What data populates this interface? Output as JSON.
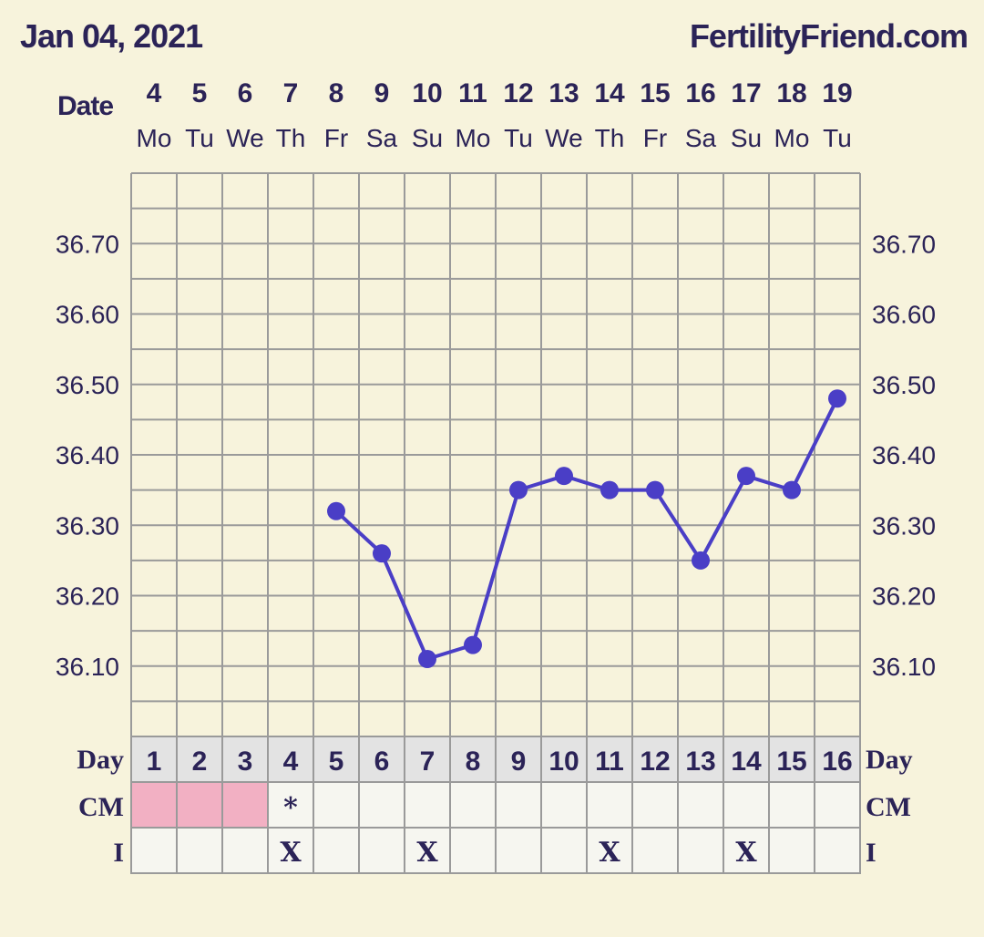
{
  "header": {
    "date": "Jan 04, 2021",
    "site": "FertilityFriend.com"
  },
  "colors": {
    "background": "#f7f3dc",
    "line": "#4a3ec6",
    "text": "#2b2357",
    "grid": "#9a9a9a",
    "menses": "#f2b0c3",
    "day_row": "#e3e3e3",
    "cell": "#f6f6f0"
  },
  "chart_data": {
    "type": "line",
    "title": "",
    "xlabel": "Date",
    "ylabel": "",
    "dates": [
      "4",
      "5",
      "6",
      "7",
      "8",
      "9",
      "10",
      "11",
      "12",
      "13",
      "14",
      "15",
      "16",
      "17",
      "18",
      "19"
    ],
    "weekdays": [
      "Mo",
      "Tu",
      "We",
      "Th",
      "Fr",
      "Sa",
      "Su",
      "Mo",
      "Tu",
      "We",
      "Th",
      "Fr",
      "Sa",
      "Su",
      "Mo",
      "Tu"
    ],
    "days": [
      "1",
      "2",
      "3",
      "4",
      "5",
      "6",
      "7",
      "8",
      "9",
      "10",
      "11",
      "12",
      "13",
      "14",
      "15",
      "16"
    ],
    "temperatures": [
      null,
      null,
      null,
      null,
      36.32,
      36.26,
      36.11,
      36.13,
      36.35,
      36.37,
      36.35,
      36.35,
      36.25,
      36.37,
      36.35,
      36.48
    ],
    "ylim": [
      36.0,
      36.8
    ],
    "yticks": [
      "36.70",
      "36.60",
      "36.50",
      "36.40",
      "36.30",
      "36.20",
      "36.10"
    ],
    "ytick_values": [
      36.7,
      36.6,
      36.5,
      36.4,
      36.3,
      36.2,
      36.1
    ],
    "grid": true,
    "rows": {
      "day_label": "Day",
      "cm_label": "CM",
      "i_label": "I",
      "menses_days": [
        1,
        2,
        3
      ],
      "cm": [
        "",
        "",
        "",
        "*",
        "",
        "",
        "",
        "",
        "",
        "",
        "",
        "",
        "",
        "",
        "",
        ""
      ],
      "intercourse": [
        "",
        "",
        "",
        "X",
        "",
        "",
        "X",
        "",
        "",
        "",
        "X",
        "",
        "",
        "X",
        "",
        ""
      ]
    }
  }
}
